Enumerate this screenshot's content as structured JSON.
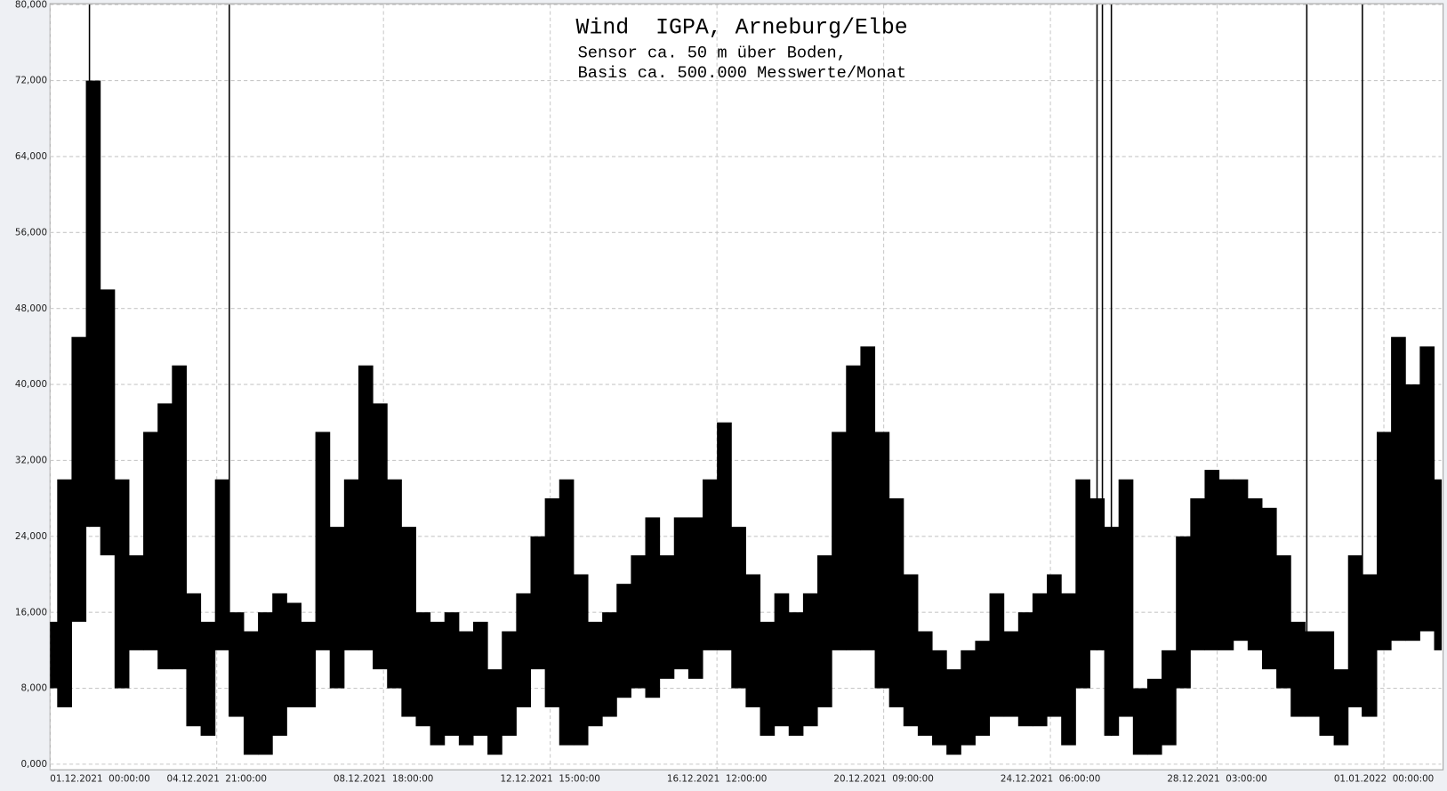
{
  "chart_data": {
    "type": "range",
    "title": "Wind  IGPA, Arneburg/Elbe",
    "subtitle": [
      "Sensor ca. 50 m über Boden,",
      "Basis ca. 500.000 Messwerte/Monat"
    ],
    "x": [
      0,
      8,
      16,
      24,
      32,
      40,
      48,
      56,
      64,
      72,
      80,
      88,
      96,
      104,
      112,
      120,
      128,
      136,
      144,
      152,
      160,
      168,
      176,
      184,
      192,
      200,
      208,
      216,
      224,
      232,
      240,
      248,
      256,
      264,
      272,
      280,
      288,
      296,
      304,
      312,
      320,
      328,
      336,
      344,
      352,
      360,
      368,
      376,
      384,
      392,
      400,
      408,
      416,
      424,
      432,
      440,
      448,
      456,
      464,
      472,
      480,
      488,
      496,
      504,
      512,
      520,
      528,
      536,
      544,
      552,
      560,
      568,
      576,
      584,
      592,
      600,
      608,
      616,
      624,
      632,
      640,
      648,
      656,
      664,
      672,
      680,
      688,
      696,
      704,
      712,
      720,
      728,
      736,
      744,
      752,
      760,
      768,
      776
    ],
    "series": [
      {
        "color": "#000000",
        "values": [
          8000,
          6000,
          15000,
          25000,
          22000,
          8000,
          12000,
          12000,
          10000,
          10000,
          4000,
          3000,
          12000,
          5000,
          1000,
          1000,
          3000,
          6000,
          6000,
          12000,
          8000,
          12000,
          12000,
          10000,
          8000,
          5000,
          4000,
          2000,
          3000,
          2000,
          3000,
          1000,
          3000,
          6000,
          10000,
          6000,
          2000,
          2000,
          4000,
          5000,
          7000,
          8000,
          7000,
          9000,
          10000,
          9000,
          12000,
          12000,
          8000,
          6000,
          3000,
          4000,
          3000,
          4000,
          6000,
          12000,
          12000,
          12000,
          8000,
          6000,
          4000,
          3000,
          2000,
          1000,
          2000,
          3000,
          5000,
          5000,
          4000,
          4000,
          5000,
          2000,
          8000,
          12000,
          3000,
          5000,
          1000,
          1000,
          2000,
          8000,
          12000,
          12000,
          12000,
          13000,
          12000,
          10000,
          8000,
          5000,
          5000,
          3000,
          2000,
          6000,
          5000,
          12000,
          13000,
          13000,
          14000,
          12000
        ]
      },
      {
        "color": "#000000",
        "values": [
          15000,
          30000,
          45000,
          72000,
          50000,
          30000,
          22000,
          35000,
          38000,
          42000,
          18000,
          15000,
          30000,
          16000,
          14000,
          16000,
          18000,
          17000,
          15000,
          35000,
          25000,
          30000,
          42000,
          38000,
          30000,
          25000,
          16000,
          15000,
          16000,
          14000,
          15000,
          10000,
          14000,
          18000,
          24000,
          28000,
          30000,
          20000,
          15000,
          16000,
          19000,
          22000,
          26000,
          22000,
          26000,
          26000,
          30000,
          36000,
          25000,
          20000,
          15000,
          18000,
          16000,
          18000,
          22000,
          35000,
          42000,
          44000,
          35000,
          28000,
          20000,
          14000,
          12000,
          10000,
          12000,
          13000,
          18000,
          14000,
          16000,
          18000,
          20000,
          18000,
          30000,
          28000,
          25000,
          30000,
          8000,
          9000,
          12000,
          24000,
          28000,
          31000,
          30000,
          30000,
          28000,
          27000,
          22000,
          15000,
          14000,
          14000,
          10000,
          22000,
          20000,
          35000,
          45000,
          40000,
          44000,
          30000
        ]
      }
    ],
    "spikes": {
      "x": [
        22,
        100,
        584,
        587,
        592,
        701,
        732
      ],
      "values": [
        80000,
        80000,
        80000,
        80000,
        80000,
        80000,
        80000
      ]
    },
    "xlim": [
      0,
      776
    ],
    "xticks": [
      {
        "value": 0,
        "label": "01.12.2021  00:00:00"
      },
      {
        "value": 93,
        "label": "04.12.2021  21:00:00"
      },
      {
        "value": 186,
        "label": "08.12.2021  18:00:00"
      },
      {
        "value": 279,
        "label": "12.12.2021  15:00:00"
      },
      {
        "value": 372,
        "label": "16.12.2021  12:00:00"
      },
      {
        "value": 465,
        "label": "20.12.2021  09:00:00"
      },
      {
        "value": 558,
        "label": "24.12.2021  06:00:00"
      },
      {
        "value": 651,
        "label": "28.12.2021  03:00:00"
      },
      {
        "value": 744,
        "label": "01.01.2022  00:00:00"
      }
    ],
    "ylim": [
      0,
      80000
    ],
    "yticks": [
      {
        "value": 0,
        "label": "0,000"
      },
      {
        "value": 8000,
        "label": "8,000"
      },
      {
        "value": 16000,
        "label": "16,000"
      },
      {
        "value": 24000,
        "label": "24,000"
      },
      {
        "value": 32000,
        "label": "32,000"
      },
      {
        "value": 40000,
        "label": "40,000"
      },
      {
        "value": 48000,
        "label": "48,000"
      },
      {
        "value": 56000,
        "label": "56,000"
      },
      {
        "value": 64000,
        "label": "64,000"
      },
      {
        "value": 72000,
        "label": "72,000"
      },
      {
        "value": 80000,
        "label": "80,000"
      }
    ],
    "grid": true
  }
}
